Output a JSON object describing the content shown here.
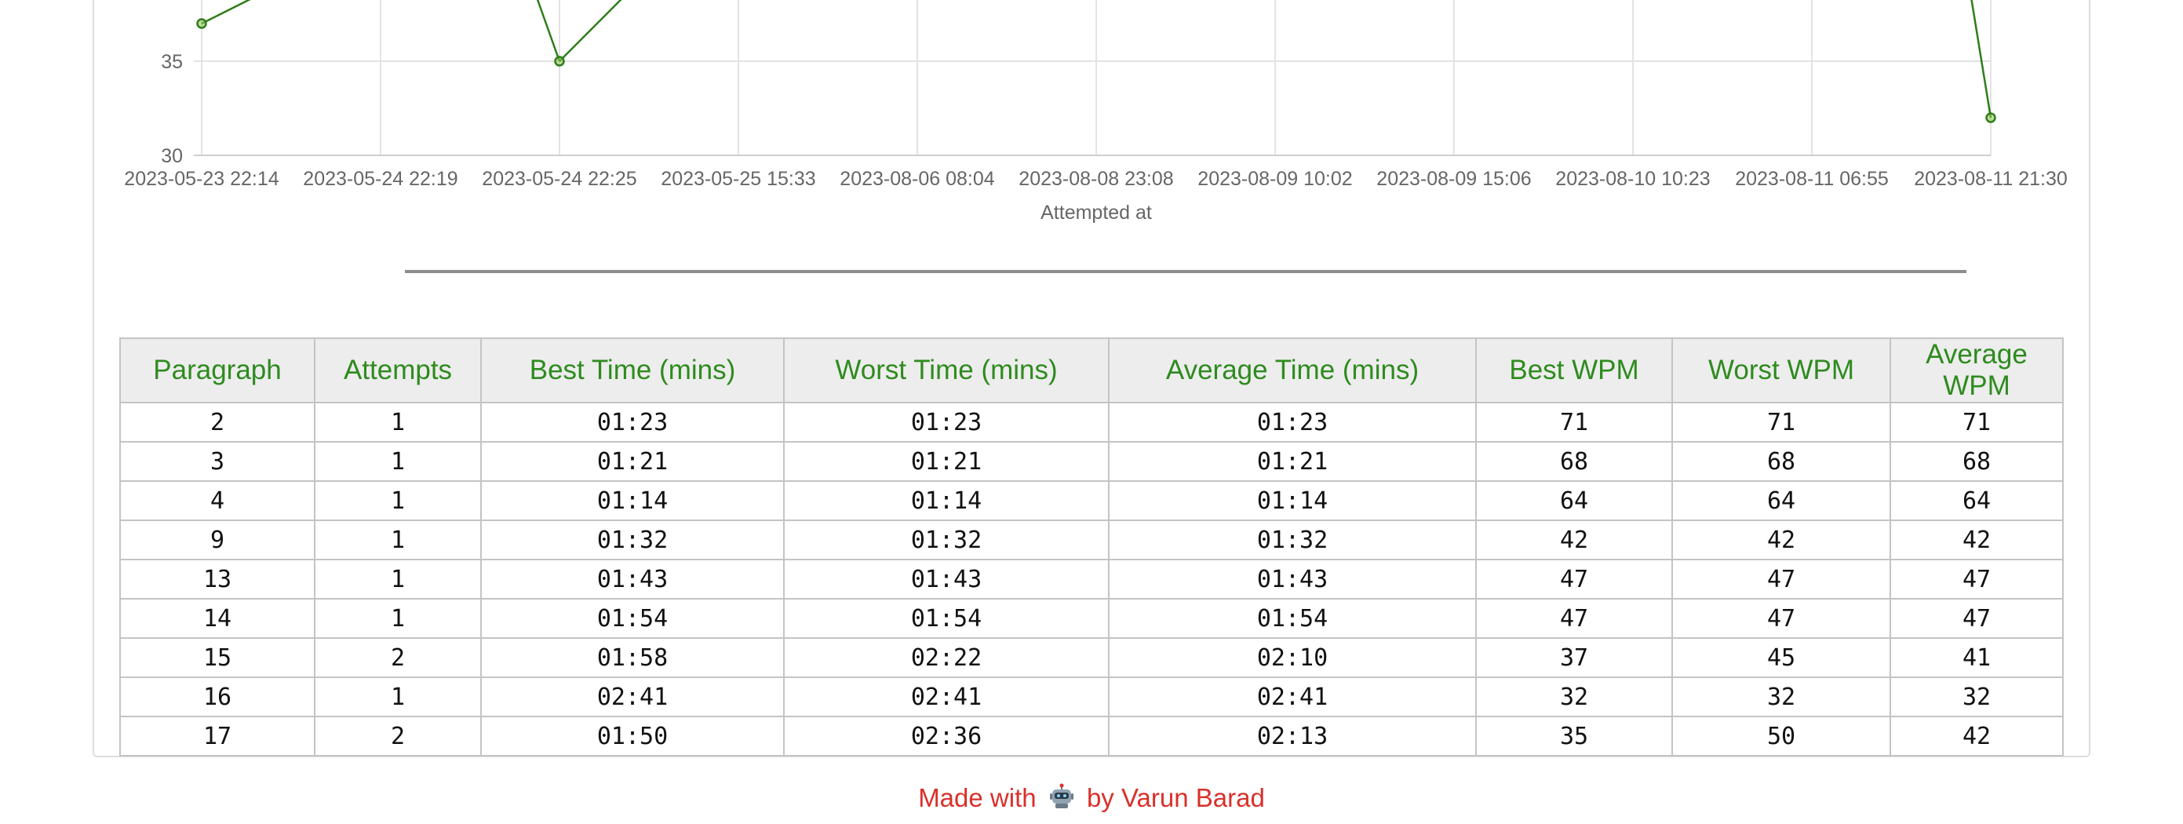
{
  "chart_data": {
    "type": "line",
    "xlabel": "Attempted at",
    "ylabel": "",
    "x": [
      "2023-05-23 22:14",
      "2023-05-24 22:19",
      "2023-05-24 22:25",
      "2023-05-25 15:33",
      "2023-08-06 08:04",
      "2023-08-08 23:08",
      "2023-08-09 10:02",
      "2023-08-09 15:06",
      "2023-08-10 10:23",
      "2023-08-11 06:55",
      "2023-08-11 21:30"
    ],
    "y_ticks": [
      30,
      35
    ],
    "visible_ylim": [
      30,
      38.2
    ],
    "series": [
      {
        "color": "#2e7d1a",
        "points": [
          {
            "x": "2023-05-23 22:14",
            "y": 37
          },
          {
            "x": "2023-05-24 22:25",
            "y": 35
          },
          {
            "x": "2023-08-11 21:30",
            "y": 32
          }
        ],
        "offscreen_segments": [
          {
            "from_x": "2023-05-23 22:14",
            "from_y": 37,
            "toward_x": "2023-05-24 22:19",
            "exits_top": true
          },
          {
            "from_x": "2023-05-24 22:25",
            "from_y": 35,
            "toward_x": "2023-05-24 22:19",
            "exits_top": true
          },
          {
            "from_x": "2023-05-24 22:25",
            "from_y": 35,
            "toward_x": "2023-05-25 15:33",
            "exits_top": true
          },
          {
            "from_x": "2023-08-11 21:30",
            "from_y": 32,
            "toward_x": "2023-08-11 06:55",
            "exits_top": true
          }
        ]
      }
    ],
    "grid": true,
    "legend": "none"
  },
  "table": {
    "headers": [
      "Paragraph",
      "Attempts",
      "Best Time (mins)",
      "Worst Time (mins)",
      "Average Time (mins)",
      "Best WPM",
      "Worst WPM",
      "Average WPM"
    ],
    "rows": [
      [
        "2",
        "1",
        "01:23",
        "01:23",
        "01:23",
        "71",
        "71",
        "71"
      ],
      [
        "3",
        "1",
        "01:21",
        "01:21",
        "01:21",
        "68",
        "68",
        "68"
      ],
      [
        "4",
        "1",
        "01:14",
        "01:14",
        "01:14",
        "64",
        "64",
        "64"
      ],
      [
        "9",
        "1",
        "01:32",
        "01:32",
        "01:32",
        "42",
        "42",
        "42"
      ],
      [
        "13",
        "1",
        "01:43",
        "01:43",
        "01:43",
        "47",
        "47",
        "47"
      ],
      [
        "14",
        "1",
        "01:54",
        "01:54",
        "01:54",
        "47",
        "47",
        "47"
      ],
      [
        "15",
        "2",
        "01:58",
        "02:22",
        "02:10",
        "37",
        "45",
        "41"
      ],
      [
        "16",
        "1",
        "02:41",
        "02:41",
        "02:41",
        "32",
        "32",
        "32"
      ],
      [
        "17",
        "2",
        "01:50",
        "02:36",
        "02:13",
        "35",
        "50",
        "42"
      ]
    ]
  },
  "footer": {
    "prefix": "Made with",
    "icon": "robot-icon",
    "suffix": "by Varun Barad"
  },
  "colors": {
    "header_text": "#2e8b1e",
    "line": "#2e7d1a",
    "footer_text": "#d9302a"
  }
}
